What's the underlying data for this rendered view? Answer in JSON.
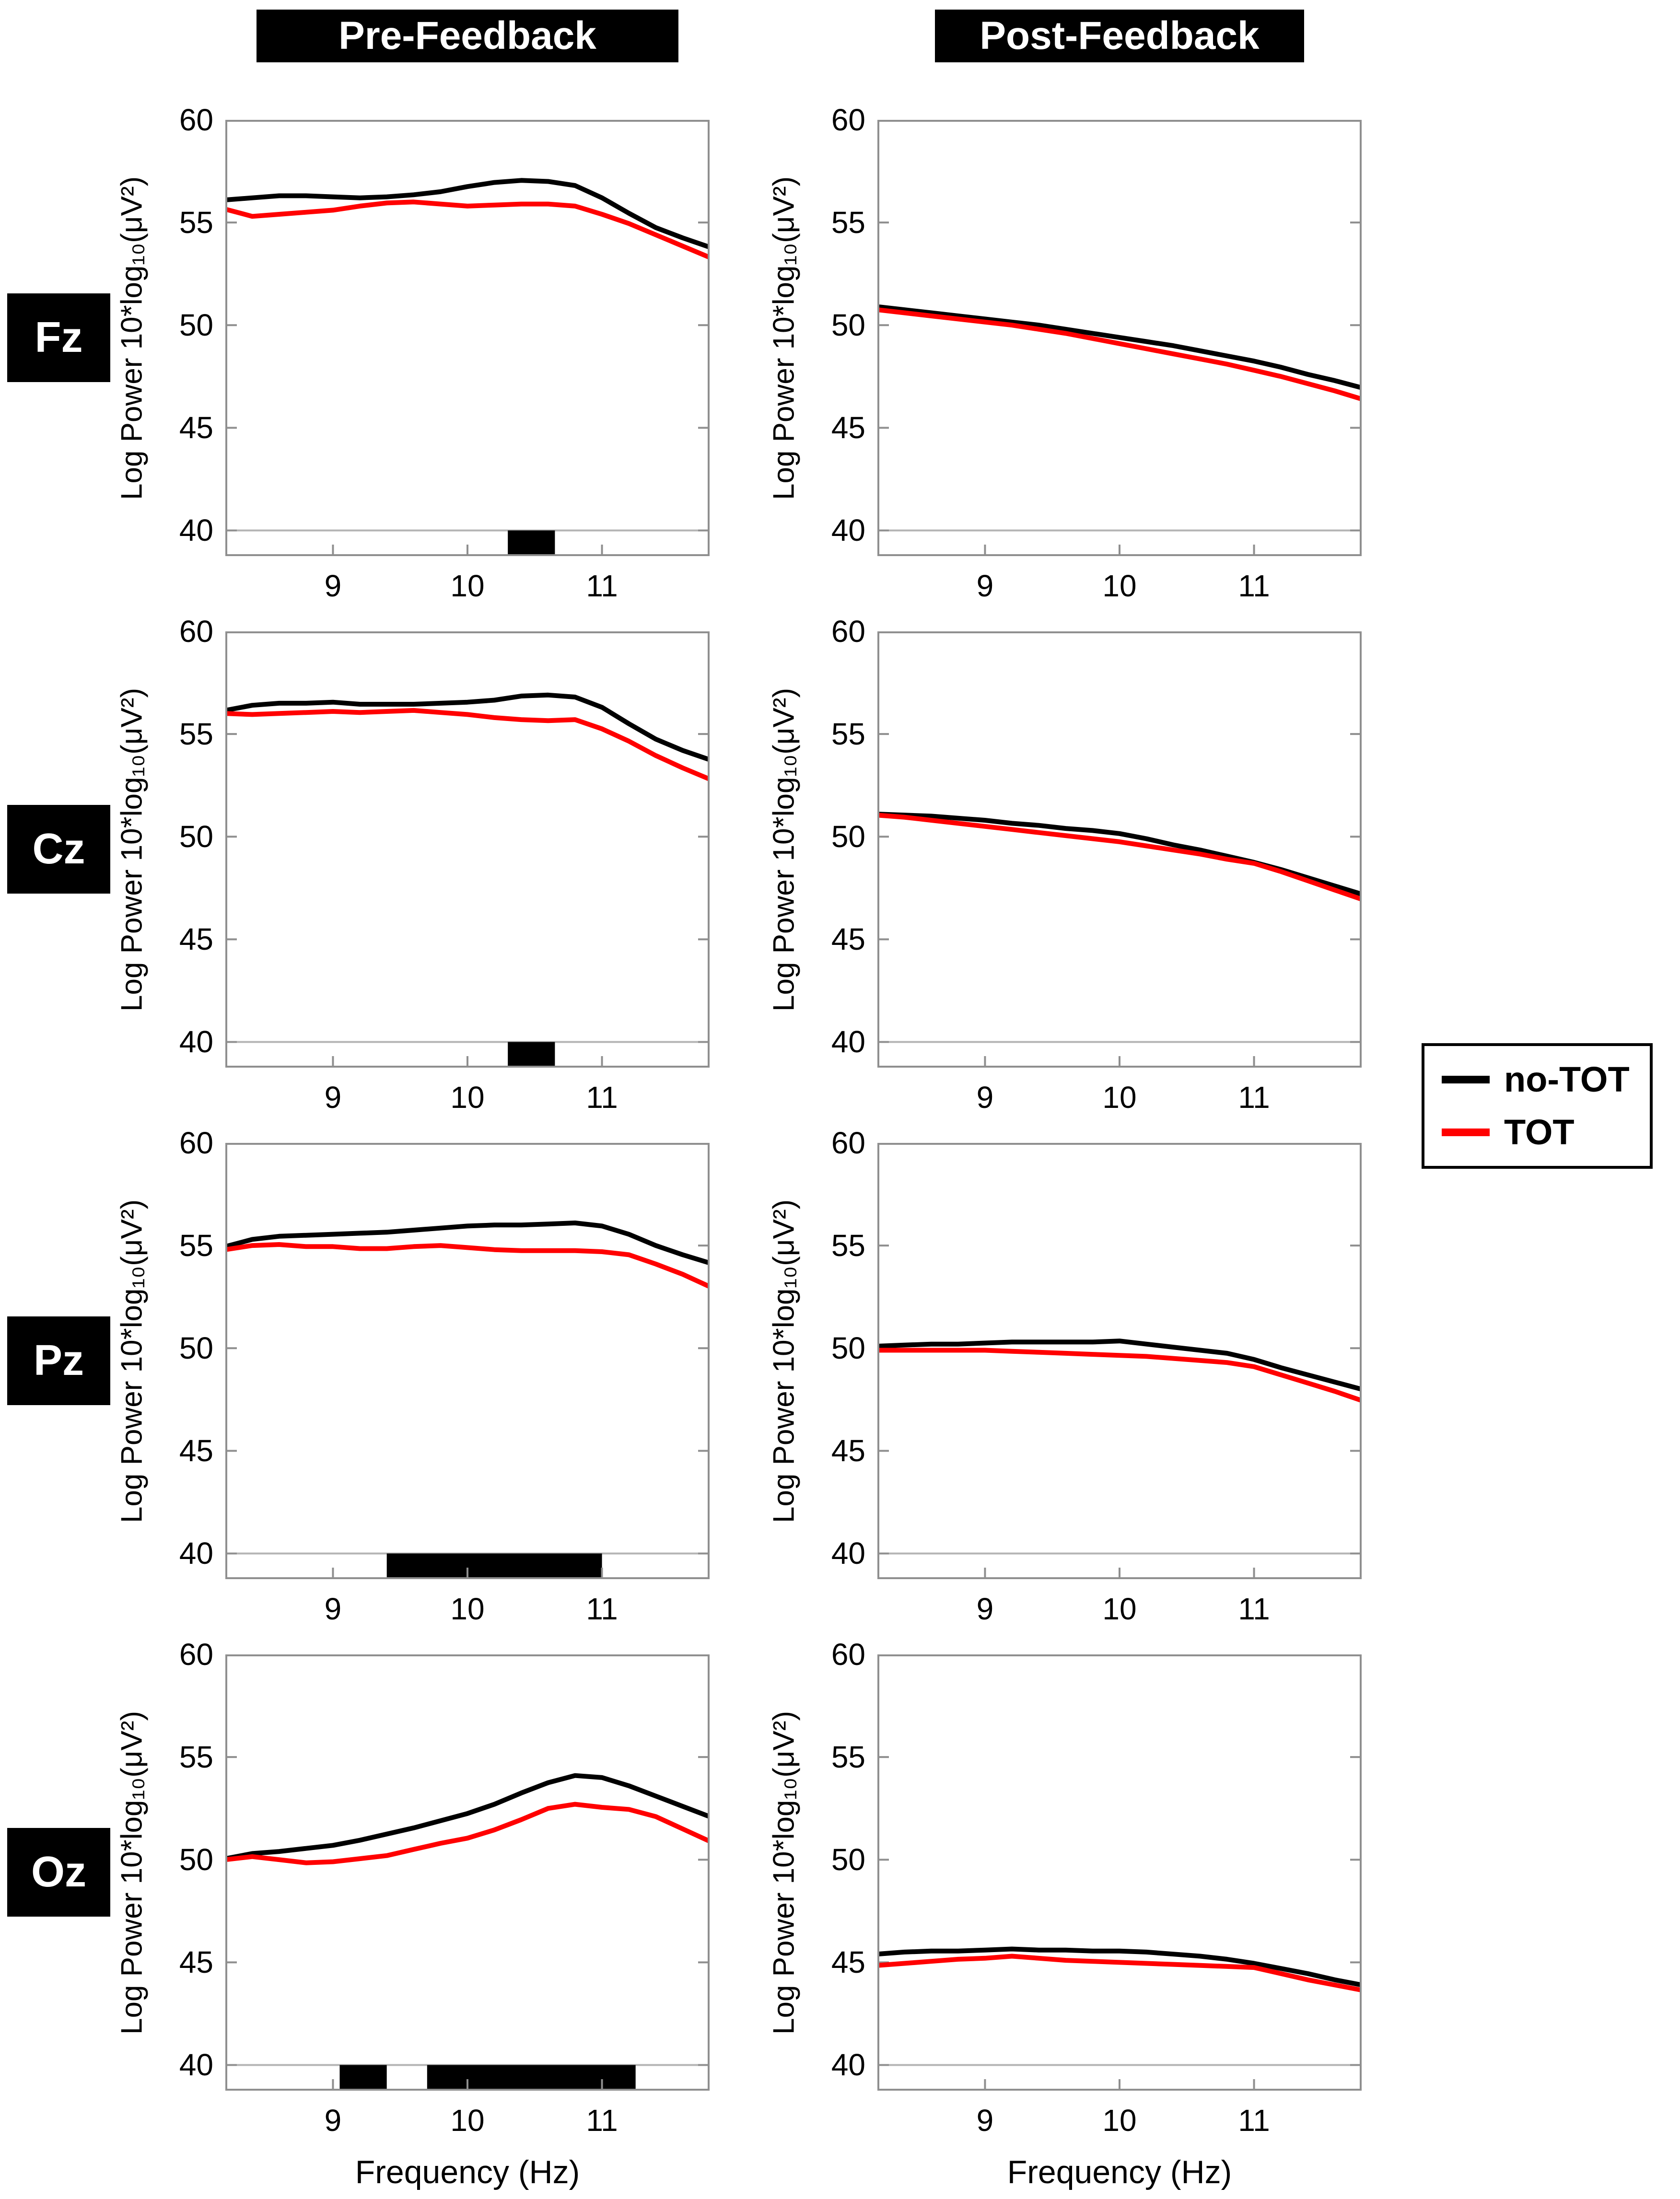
{
  "headers": {
    "pre": "Pre-Feedback",
    "post": "Post-Feedback"
  },
  "rows": [
    {
      "label": "Fz"
    },
    {
      "label": "Cz"
    },
    {
      "label": "Pz"
    },
    {
      "label": "Oz"
    }
  ],
  "legend": {
    "items": [
      {
        "label": "no-TOT",
        "color": "#000000"
      },
      {
        "label": "TOT",
        "color": "#ff0000"
      }
    ]
  },
  "colors": {
    "no_tot": "#000000",
    "tot": "#ff0000",
    "baseline_gray": "#b4b4b4",
    "axis_gray": "#8f8f8f",
    "header_bg": "#000000",
    "header_text": "#ffffff",
    "sig_bar": "#000000"
  },
  "chart_data": {
    "type": "line",
    "x": [
      8.2,
      8.4,
      8.6,
      8.8,
      9.0,
      9.2,
      9.4,
      9.6,
      9.8,
      10.0,
      10.2,
      10.4,
      10.6,
      10.8,
      11.0,
      11.2,
      11.4,
      11.6,
      11.8
    ],
    "axes": {
      "ylabel": "Log Power 10*log₁₀(μV²)",
      "xlabel": "Frequency (Hz)",
      "xlim": [
        8.2,
        11.8
      ],
      "ylim": [
        38.75,
        60
      ],
      "xticks": [
        9,
        10,
        11
      ],
      "yticks": [
        40,
        45,
        50,
        55,
        60
      ],
      "baseline": 40,
      "grid": false,
      "legend_position": "right-middle"
    },
    "panels": [
      {
        "id": "fz_pre",
        "electrode": "Fz",
        "condition": "Pre-Feedback",
        "series": [
          {
            "name": "no-TOT",
            "color": "#000000",
            "values": [
              56.1,
              56.2,
              56.3,
              56.3,
              56.25,
              56.2,
              56.25,
              56.35,
              56.5,
              56.75,
              56.95,
              57.05,
              57.0,
              56.8,
              56.2,
              55.45,
              54.75,
              54.25,
              53.8
            ]
          },
          {
            "name": "TOT",
            "color": "#ff0000",
            "values": [
              55.65,
              55.3,
              55.4,
              55.5,
              55.6,
              55.8,
              55.95,
              56.0,
              55.9,
              55.8,
              55.85,
              55.9,
              55.9,
              55.8,
              55.4,
              54.95,
              54.4,
              53.85,
              53.3
            ]
          }
        ],
        "sig_bars": [
          [
            10.3,
            10.65
          ]
        ]
      },
      {
        "id": "fz_post",
        "electrode": "Fz",
        "condition": "Post-Feedback",
        "series": [
          {
            "name": "no-TOT",
            "color": "#000000",
            "values": [
              50.9,
              50.75,
              50.6,
              50.45,
              50.3,
              50.15,
              50.0,
              49.8,
              49.6,
              49.4,
              49.2,
              49.0,
              48.75,
              48.5,
              48.25,
              47.95,
              47.6,
              47.3,
              46.95
            ]
          },
          {
            "name": "TOT",
            "color": "#ff0000",
            "values": [
              50.75,
              50.6,
              50.45,
              50.3,
              50.15,
              50.0,
              49.8,
              49.6,
              49.35,
              49.1,
              48.85,
              48.6,
              48.35,
              48.1,
              47.8,
              47.5,
              47.15,
              46.8,
              46.4
            ]
          }
        ],
        "sig_bars": []
      },
      {
        "id": "cz_pre",
        "electrode": "Cz",
        "condition": "Pre-Feedback",
        "series": [
          {
            "name": "no-TOT",
            "color": "#000000",
            "values": [
              56.15,
              56.4,
              56.5,
              56.5,
              56.55,
              56.45,
              56.45,
              56.45,
              56.5,
              56.55,
              56.65,
              56.85,
              56.9,
              56.8,
              56.3,
              55.5,
              54.75,
              54.2,
              53.75
            ]
          },
          {
            "name": "TOT",
            "color": "#ff0000",
            "values": [
              56.0,
              55.95,
              56.0,
              56.05,
              56.1,
              56.05,
              56.1,
              56.15,
              56.05,
              55.95,
              55.8,
              55.7,
              55.65,
              55.7,
              55.25,
              54.65,
              53.95,
              53.35,
              52.8
            ]
          }
        ],
        "sig_bars": [
          [
            10.3,
            10.65
          ]
        ]
      },
      {
        "id": "cz_post",
        "electrode": "Cz",
        "condition": "Post-Feedback",
        "series": [
          {
            "name": "no-TOT",
            "color": "#000000",
            "values": [
              51.1,
              51.05,
              51.0,
              50.9,
              50.8,
              50.65,
              50.55,
              50.4,
              50.3,
              50.15,
              49.9,
              49.6,
              49.35,
              49.05,
              48.75,
              48.4,
              48.0,
              47.6,
              47.2
            ]
          },
          {
            "name": "TOT",
            "color": "#ff0000",
            "values": [
              51.05,
              50.95,
              50.8,
              50.65,
              50.5,
              50.35,
              50.2,
              50.05,
              49.9,
              49.75,
              49.55,
              49.35,
              49.15,
              48.9,
              48.7,
              48.3,
              47.85,
              47.4,
              46.95
            ]
          }
        ],
        "sig_bars": []
      },
      {
        "id": "pz_pre",
        "electrode": "Pz",
        "condition": "Pre-Feedback",
        "series": [
          {
            "name": "no-TOT",
            "color": "#000000",
            "values": [
              54.95,
              55.3,
              55.45,
              55.5,
              55.55,
              55.6,
              55.65,
              55.75,
              55.85,
              55.95,
              56.0,
              56.0,
              56.05,
              56.1,
              55.95,
              55.55,
              55.0,
              54.55,
              54.15
            ]
          },
          {
            "name": "TOT",
            "color": "#ff0000",
            "values": [
              54.8,
              55.0,
              55.05,
              54.95,
              54.95,
              54.85,
              54.85,
              54.95,
              55.0,
              54.9,
              54.8,
              54.75,
              54.75,
              54.75,
              54.7,
              54.55,
              54.1,
              53.6,
              53.0
            ]
          }
        ],
        "sig_bars": [
          [
            9.4,
            11.0
          ]
        ]
      },
      {
        "id": "pz_post",
        "electrode": "Pz",
        "condition": "Post-Feedback",
        "series": [
          {
            "name": "no-TOT",
            "color": "#000000",
            "values": [
              50.1,
              50.15,
              50.2,
              50.2,
              50.25,
              50.3,
              50.3,
              50.3,
              50.3,
              50.35,
              50.2,
              50.05,
              49.9,
              49.75,
              49.45,
              49.05,
              48.7,
              48.35,
              48.0
            ]
          },
          {
            "name": "TOT",
            "color": "#ff0000",
            "values": [
              49.9,
              49.9,
              49.9,
              49.9,
              49.9,
              49.85,
              49.8,
              49.75,
              49.7,
              49.65,
              49.6,
              49.5,
              49.4,
              49.3,
              49.1,
              48.7,
              48.3,
              47.9,
              47.45
            ]
          }
        ],
        "sig_bars": []
      },
      {
        "id": "oz_pre",
        "electrode": "Oz",
        "condition": "Pre-Feedback",
        "series": [
          {
            "name": "no-TOT",
            "color": "#000000",
            "values": [
              50.05,
              50.3,
              50.4,
              50.55,
              50.7,
              50.95,
              51.25,
              51.55,
              51.9,
              52.25,
              52.7,
              53.25,
              53.75,
              54.1,
              54.0,
              53.6,
              53.1,
              52.6,
              52.1
            ]
          },
          {
            "name": "TOT",
            "color": "#ff0000",
            "values": [
              50.0,
              50.15,
              50.0,
              49.85,
              49.9,
              50.05,
              50.2,
              50.5,
              50.8,
              51.05,
              51.45,
              51.95,
              52.5,
              52.7,
              52.55,
              52.45,
              52.1,
              51.5,
              50.9
            ]
          }
        ],
        "sig_bars": [
          [
            9.05,
            9.4
          ],
          [
            9.7,
            11.25
          ]
        ]
      },
      {
        "id": "oz_post",
        "electrode": "Oz",
        "condition": "Post-Feedback",
        "series": [
          {
            "name": "no-TOT",
            "color": "#000000",
            "values": [
              45.4,
              45.5,
              45.55,
              45.55,
              45.6,
              45.65,
              45.6,
              45.6,
              45.55,
              45.55,
              45.5,
              45.4,
              45.3,
              45.15,
              44.95,
              44.7,
              44.45,
              44.15,
              43.9
            ]
          },
          {
            "name": "TOT",
            "color": "#ff0000",
            "values": [
              44.85,
              44.95,
              45.05,
              45.15,
              45.2,
              45.3,
              45.2,
              45.1,
              45.05,
              45.0,
              44.95,
              44.9,
              44.85,
              44.8,
              44.75,
              44.45,
              44.15,
              43.9,
              43.65
            ]
          }
        ],
        "sig_bars": []
      }
    ]
  }
}
